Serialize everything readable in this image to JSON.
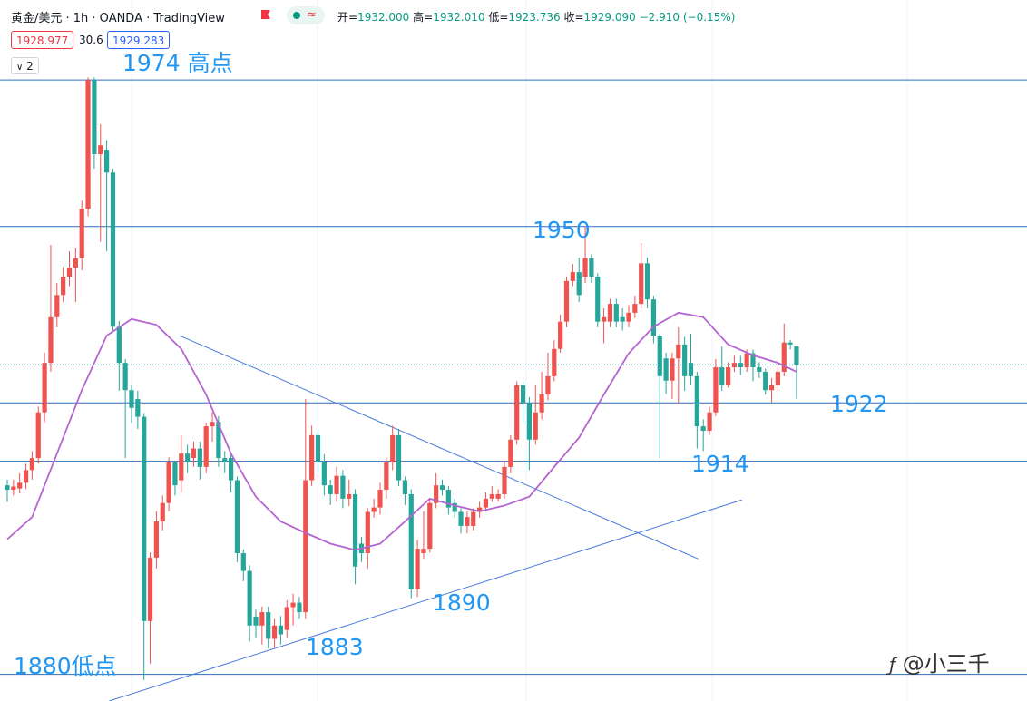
{
  "header": {
    "title": "黄金/美元 · 1h · OANDA · TradingView",
    "ohlc": [
      [
        "开=",
        "1932.000"
      ],
      [
        "高=",
        "1932.010"
      ],
      [
        "低=",
        "1923.736"
      ],
      [
        "收=",
        "1929.090"
      ]
    ],
    "change": "−2.910 (−0.15%)",
    "bid": "1928.977",
    "spread": "30.6",
    "ask": "1929.283",
    "count": "2",
    "watermark": "@小三千"
  },
  "chart_data": {
    "type": "candlestick",
    "ylim": [
      1876.1,
      1986.6
    ],
    "up_color": "#ef5350",
    "down_color": "#26a69a",
    "ma_color": "#b565d0",
    "level_color": "#2a6fbf",
    "trend_color": "#4a7bdc",
    "ohlc": [
      [
        1910.1,
        1911,
        1907.5,
        1909.4
      ],
      [
        1909.4,
        1911,
        1908.5,
        1909.9
      ],
      [
        1909.6,
        1912,
        1908.8,
        1910.5
      ],
      [
        1910.5,
        1913.5,
        1909.5,
        1912.5
      ],
      [
        1912.5,
        1915.5,
        1911,
        1914.4
      ],
      [
        1914.4,
        1922.5,
        1913.5,
        1921.6
      ],
      [
        1921.6,
        1931,
        1920,
        1929.4
      ],
      [
        1929.4,
        1948,
        1928,
        1936.6
      ],
      [
        1936.6,
        1942,
        1935,
        1940.1
      ],
      [
        1940.1,
        1944.5,
        1939,
        1943
      ],
      [
        1943,
        1947,
        1941.5,
        1944.4
      ],
      [
        1944.4,
        1947.5,
        1939,
        1945.9
      ],
      [
        1945.9,
        1955,
        1944,
        1953.7
      ],
      [
        1953.7,
        1974.4,
        1952.5,
        1974
      ],
      [
        1974,
        1974.4,
        1960,
        1962.3
      ],
      [
        1962.3,
        1967,
        1948.5,
        1963.7
      ],
      [
        1963,
        1964.5,
        1947,
        1959.4
      ],
      [
        1959.4,
        1960,
        1934.4,
        1935.1
      ],
      [
        1935.1,
        1936,
        1925,
        1929.4
      ],
      [
        1929.4,
        1930,
        1914.4,
        1925.1
      ],
      [
        1925.1,
        1926,
        1920,
        1922.3
      ],
      [
        1923.7,
        1925,
        1919,
        1920.9
      ],
      [
        1920.9,
        1921.5,
        1879.4,
        1888.7
      ],
      [
        1888.7,
        1899.5,
        1882,
        1898.7
      ],
      [
        1898.7,
        1906,
        1897,
        1904.4
      ],
      [
        1904.4,
        1908.5,
        1903,
        1907.3
      ],
      [
        1907.3,
        1914.5,
        1906,
        1913.7
      ],
      [
        1913.7,
        1914,
        1908.5,
        1910.1
      ],
      [
        1910.9,
        1918,
        1909,
        1915.1
      ],
      [
        1915.1,
        1916.5,
        1912,
        1913.7
      ],
      [
        1914.4,
        1917,
        1913,
        1915.9
      ],
      [
        1915.9,
        1917,
        1911,
        1913
      ],
      [
        1913,
        1920,
        1912,
        1919.4
      ],
      [
        1919.4,
        1921.6,
        1917,
        1920.1
      ],
      [
        1920.1,
        1921,
        1913,
        1914.4
      ],
      [
        1914.4,
        1915.5,
        1912,
        1913.7
      ],
      [
        1914.4,
        1915,
        1909,
        1910.9
      ],
      [
        1910.9,
        1911.5,
        1898,
        1899.4
      ],
      [
        1899.4,
        1900,
        1895,
        1896.6
      ],
      [
        1896.6,
        1897.5,
        1885.5,
        1888
      ],
      [
        1889.4,
        1890.5,
        1886,
        1888
      ],
      [
        1888,
        1891,
        1885,
        1890.1
      ],
      [
        1890.1,
        1891,
        1884.4,
        1885.9
      ],
      [
        1885.9,
        1889,
        1884.5,
        1888
      ],
      [
        1888,
        1889.5,
        1885,
        1886.6
      ],
      [
        1887.3,
        1892,
        1886,
        1890.9
      ],
      [
        1890.9,
        1893,
        1888,
        1891.6
      ],
      [
        1891.6,
        1892.5,
        1889,
        1890.1
      ],
      [
        1890.1,
        1923.7,
        1889,
        1910.9
      ],
      [
        1910.9,
        1919.5,
        1910,
        1918
      ],
      [
        1918,
        1919,
        1912,
        1913.7
      ],
      [
        1913.7,
        1915,
        1908.5,
        1910.1
      ],
      [
        1910.1,
        1911,
        1907,
        1908.7
      ],
      [
        1908.7,
        1913,
        1907.5,
        1911.6
      ],
      [
        1911.6,
        1912.5,
        1906.5,
        1908
      ],
      [
        1908,
        1911,
        1906.8,
        1908.7
      ],
      [
        1908.7,
        1909.5,
        1894.5,
        1897.3
      ],
      [
        1900.9,
        1902,
        1898,
        1899.4
      ],
      [
        1899.4,
        1906.5,
        1897,
        1905.9
      ],
      [
        1905.9,
        1908,
        1905,
        1906.6
      ],
      [
        1906.6,
        1910.5,
        1905.5,
        1909.4
      ],
      [
        1909.4,
        1914.5,
        1908,
        1913.7
      ],
      [
        1913.7,
        1919.5,
        1912.5,
        1918
      ],
      [
        1918,
        1919,
        1910,
        1910.9
      ],
      [
        1910.9,
        1911.5,
        1907,
        1908.7
      ],
      [
        1908.7,
        1909.5,
        1892.3,
        1893.7
      ],
      [
        1893.7,
        1901.5,
        1892.5,
        1900.1
      ],
      [
        1899.4,
        1906,
        1898.5,
        1900.1
      ],
      [
        1900.1,
        1908,
        1899.5,
        1907.3
      ],
      [
        1907.3,
        1912,
        1906.5,
        1910.1
      ],
      [
        1910.1,
        1911,
        1908.5,
        1909.4
      ],
      [
        1909.4,
        1910,
        1905.5,
        1906.6
      ],
      [
        1907.3,
        1908,
        1905,
        1905.9
      ],
      [
        1905.9,
        1906.5,
        1902.5,
        1903.7
      ],
      [
        1903.7,
        1906,
        1902.5,
        1905.1
      ],
      [
        1903.7,
        1906.5,
        1903,
        1905.9
      ],
      [
        1905.9,
        1907.5,
        1905,
        1906.6
      ],
      [
        1906.6,
        1909,
        1906,
        1908
      ],
      [
        1908,
        1910,
        1907.5,
        1908.7
      ],
      [
        1908,
        1909.5,
        1907.5,
        1908.7
      ],
      [
        1908.7,
        1914,
        1908,
        1913
      ],
      [
        1913,
        1918,
        1912,
        1917.3
      ],
      [
        1917.3,
        1926.5,
        1916.5,
        1925.9
      ],
      [
        1925.9,
        1926.5,
        1920,
        1923
      ],
      [
        1923,
        1924,
        1912.5,
        1917.3
      ],
      [
        1917.3,
        1926,
        1916.5,
        1921.6
      ],
      [
        1921.6,
        1928,
        1920.5,
        1924.4
      ],
      [
        1924.4,
        1931,
        1923.5,
        1927.3
      ],
      [
        1927.3,
        1933,
        1926.5,
        1931.6
      ],
      [
        1931.6,
        1937,
        1931,
        1935.9
      ],
      [
        1935.9,
        1943,
        1935,
        1942.3
      ],
      [
        1942.3,
        1945,
        1941.5,
        1943.7
      ],
      [
        1943.7,
        1946,
        1939,
        1940.1
      ],
      [
        1943,
        1950.9,
        1942,
        1945.9
      ],
      [
        1945.9,
        1946.5,
        1942,
        1943
      ],
      [
        1943,
        1943.5,
        1935,
        1935.9
      ],
      [
        1935.9,
        1938,
        1932.5,
        1936.6
      ],
      [
        1935.9,
        1939.5,
        1935,
        1938.7
      ],
      [
        1938.7,
        1939.5,
        1935,
        1935.9
      ],
      [
        1936.6,
        1938,
        1934.5,
        1935.9
      ],
      [
        1935.9,
        1938.5,
        1935,
        1937.3
      ],
      [
        1937.3,
        1940,
        1936.5,
        1938.7
      ],
      [
        1938.7,
        1948.3,
        1938,
        1945.1
      ],
      [
        1945.1,
        1946,
        1938,
        1939.4
      ],
      [
        1939.4,
        1940,
        1932.5,
        1933.7
      ],
      [
        1933.7,
        1934,
        1914.4,
        1927.3
      ],
      [
        1930.1,
        1931,
        1924.5,
        1926.6
      ],
      [
        1926.6,
        1931,
        1923.7,
        1930.1
      ],
      [
        1930.1,
        1935,
        1923,
        1932.3
      ],
      [
        1932.3,
        1933.5,
        1925,
        1927.3
      ],
      [
        1929.4,
        1934,
        1926,
        1927.3
      ],
      [
        1927.3,
        1928,
        1915.9,
        1919.4
      ],
      [
        1919.4,
        1920.5,
        1915.5,
        1918.7
      ],
      [
        1918.7,
        1922.5,
        1918,
        1921.6
      ],
      [
        1921.6,
        1930,
        1921,
        1928.7
      ],
      [
        1928.7,
        1932,
        1925,
        1925.9
      ],
      [
        1925.9,
        1929.5,
        1925.5,
        1928.7
      ],
      [
        1928.7,
        1930.5,
        1928,
        1929.4
      ],
      [
        1929.4,
        1930.5,
        1927.5,
        1928.7
      ],
      [
        1928.7,
        1931.5,
        1928,
        1930.9
      ],
      [
        1930.9,
        1931.5,
        1926.5,
        1928.7
      ],
      [
        1928.7,
        1929.5,
        1927,
        1928
      ],
      [
        1928,
        1928.5,
        1924.4,
        1925.1
      ],
      [
        1925.1,
        1927,
        1923.2,
        1925.9
      ],
      [
        1925.9,
        1928.8,
        1925,
        1928
      ],
      [
        1928,
        1935.6,
        1927.3,
        1932.6
      ],
      [
        1932.6,
        1933,
        1931.5,
        1932.3
      ],
      [
        1932,
        1932.01,
        1923.736,
        1929.09
      ]
    ],
    "ma": {
      "x": [
        0,
        4,
        8,
        12,
        16,
        20,
        24,
        28,
        32,
        36,
        40,
        44,
        48,
        52,
        56,
        60,
        64,
        68,
        72,
        76,
        80,
        84,
        88,
        92,
        96,
        100,
        104,
        108,
        112,
        116,
        120,
        124,
        127
      ],
      "values": [
        1901.6,
        1905.1,
        1915.1,
        1925.1,
        1933.7,
        1936.3,
        1935.4,
        1931.6,
        1924.4,
        1915.1,
        1908.3,
        1904.4,
        1902.6,
        1900.9,
        1899.9,
        1900.9,
        1904.4,
        1908,
        1906.9,
        1906,
        1906.9,
        1908.3,
        1913,
        1917.6,
        1924.4,
        1930.9,
        1935.1,
        1937.3,
        1936.6,
        1932.3,
        1930.6,
        1929.4,
        1928
      ]
    },
    "levels": [
      1974,
      1950.9,
      1923.1,
      1913.9,
      1880.3
    ],
    "trendlines": [
      {
        "x": [
          27.7,
          111.2
        ],
        "y": [
          1933.7,
          1898.5
        ]
      },
      {
        "x": [
          16.4,
          118.2
        ],
        "y": [
          1876.1,
          1907.8
        ]
      }
    ],
    "annotations": [
      "1974 高点",
      "1950",
      "1922",
      "1914",
      "1890",
      "1883",
      "1880低点"
    ]
  }
}
